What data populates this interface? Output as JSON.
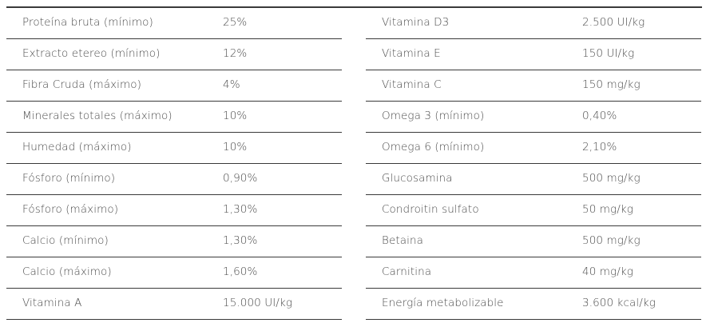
{
  "table": {
    "left_column": [
      {
        "label": "Proteína bruta (mínimo)",
        "value": "25%"
      },
      {
        "label": "Extracto etereo (mínimo)",
        "value": "12%"
      },
      {
        "label": "Fibra Cruda (máximo)",
        "value": "4%"
      },
      {
        "label": "Minerales totales (máximo)",
        "value": "10%"
      },
      {
        "label": "Humedad (máximo)",
        "value": "10%"
      },
      {
        "label": "Fósforo (mínimo)",
        "value": "0,90%"
      },
      {
        "label": "Fósforo (máximo)",
        "value": "1,30%"
      },
      {
        "label": "Calcio (mínimo)",
        "value": "1,30%"
      },
      {
        "label": "Calcio (máximo)",
        "value": "1,60%"
      },
      {
        "label": "Vitamina A",
        "value": "15.000 UI/kg"
      }
    ],
    "right_column": [
      {
        "label": "Vitamina D3",
        "value": "2.500 UI/kg"
      },
      {
        "label": "Vitamina E",
        "value": "150 UI/kg"
      },
      {
        "label": "Vitamina C",
        "value": "150 mg/kg"
      },
      {
        "label": "Omega 3 (mínimo)",
        "value": "0,40%"
      },
      {
        "label": "Omega 6 (mínimo)",
        "value": "2,10%"
      },
      {
        "label": "Glucosamina",
        "value": "500 mg/kg"
      },
      {
        "label": "Condroitin sulfato",
        "value": "50 mg/kg"
      },
      {
        "label": "Betaina",
        "value": "500 mg/kg"
      },
      {
        "label": "Carnitina",
        "value": "40 mg/kg"
      },
      {
        "label": "Energía metabolizable",
        "value": "3.600 kcal/kg"
      }
    ]
  }
}
